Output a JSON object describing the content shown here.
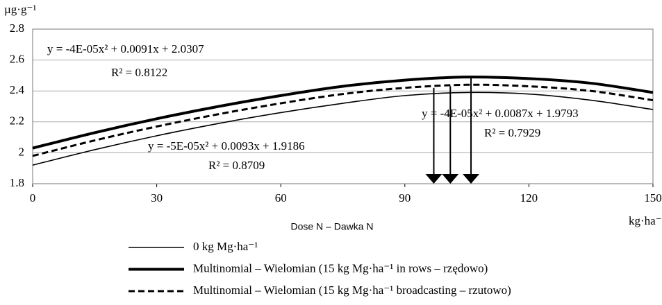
{
  "chart_data": {
    "type": "line",
    "y_unit": "µg·g⁻¹",
    "x_unit": "kg·ha⁻¹",
    "x_label": "Dose N – Dawka N",
    "x": [
      0,
      15,
      30,
      45,
      60,
      75,
      90,
      105,
      120,
      135,
      150
    ],
    "series": [
      {
        "name": "0 kg Mg·ha⁻¹",
        "color": "#000000",
        "style": "thin",
        "values": [
          1.92,
          2.02,
          2.11,
          2.19,
          2.26,
          2.32,
          2.37,
          2.39,
          2.38,
          2.34,
          2.28
        ]
      },
      {
        "name": "Multinomial – Wielomian (15 kg Mg·ha⁻¹ in rows – rzędowo)",
        "color": "#000000",
        "style": "thick",
        "values": [
          2.03,
          2.13,
          2.22,
          2.3,
          2.37,
          2.43,
          2.47,
          2.49,
          2.48,
          2.45,
          2.39
        ]
      },
      {
        "name": "Multinomial – Wielomian (15 kg Mg·ha⁻¹ broadcasting – rzutowo)",
        "color": "#000000",
        "style": "dashed",
        "values": [
          1.98,
          2.08,
          2.17,
          2.25,
          2.32,
          2.38,
          2.42,
          2.44,
          2.43,
          2.4,
          2.34
        ]
      }
    ],
    "arrows": [
      {
        "x": 97,
        "y": 2.42
      },
      {
        "x": 101,
        "y": 2.43
      },
      {
        "x": 106,
        "y": 2.49
      }
    ],
    "annotations": [
      "y = -4E-05x² + 0.0091x + 2.0307",
      "R² = 0.8122",
      "y = -5E-05x² + 0.0093x + 1.9186",
      "R² = 0.8709",
      "y = -4E-05x² + 0.0087x + 1.9793",
      "R² = 0.7929"
    ],
    "xlim": [
      0,
      150
    ],
    "xticks": [
      0,
      30,
      60,
      90,
      120,
      150
    ],
    "ylim": [
      1.8,
      2.8
    ],
    "yticks": [
      {
        "value": 1.8,
        "label": "1.8"
      },
      2,
      2.2,
      2.4,
      2.6,
      {
        "value": 2.8,
        "label": "2.8"
      }
    ],
    "grid": true
  }
}
